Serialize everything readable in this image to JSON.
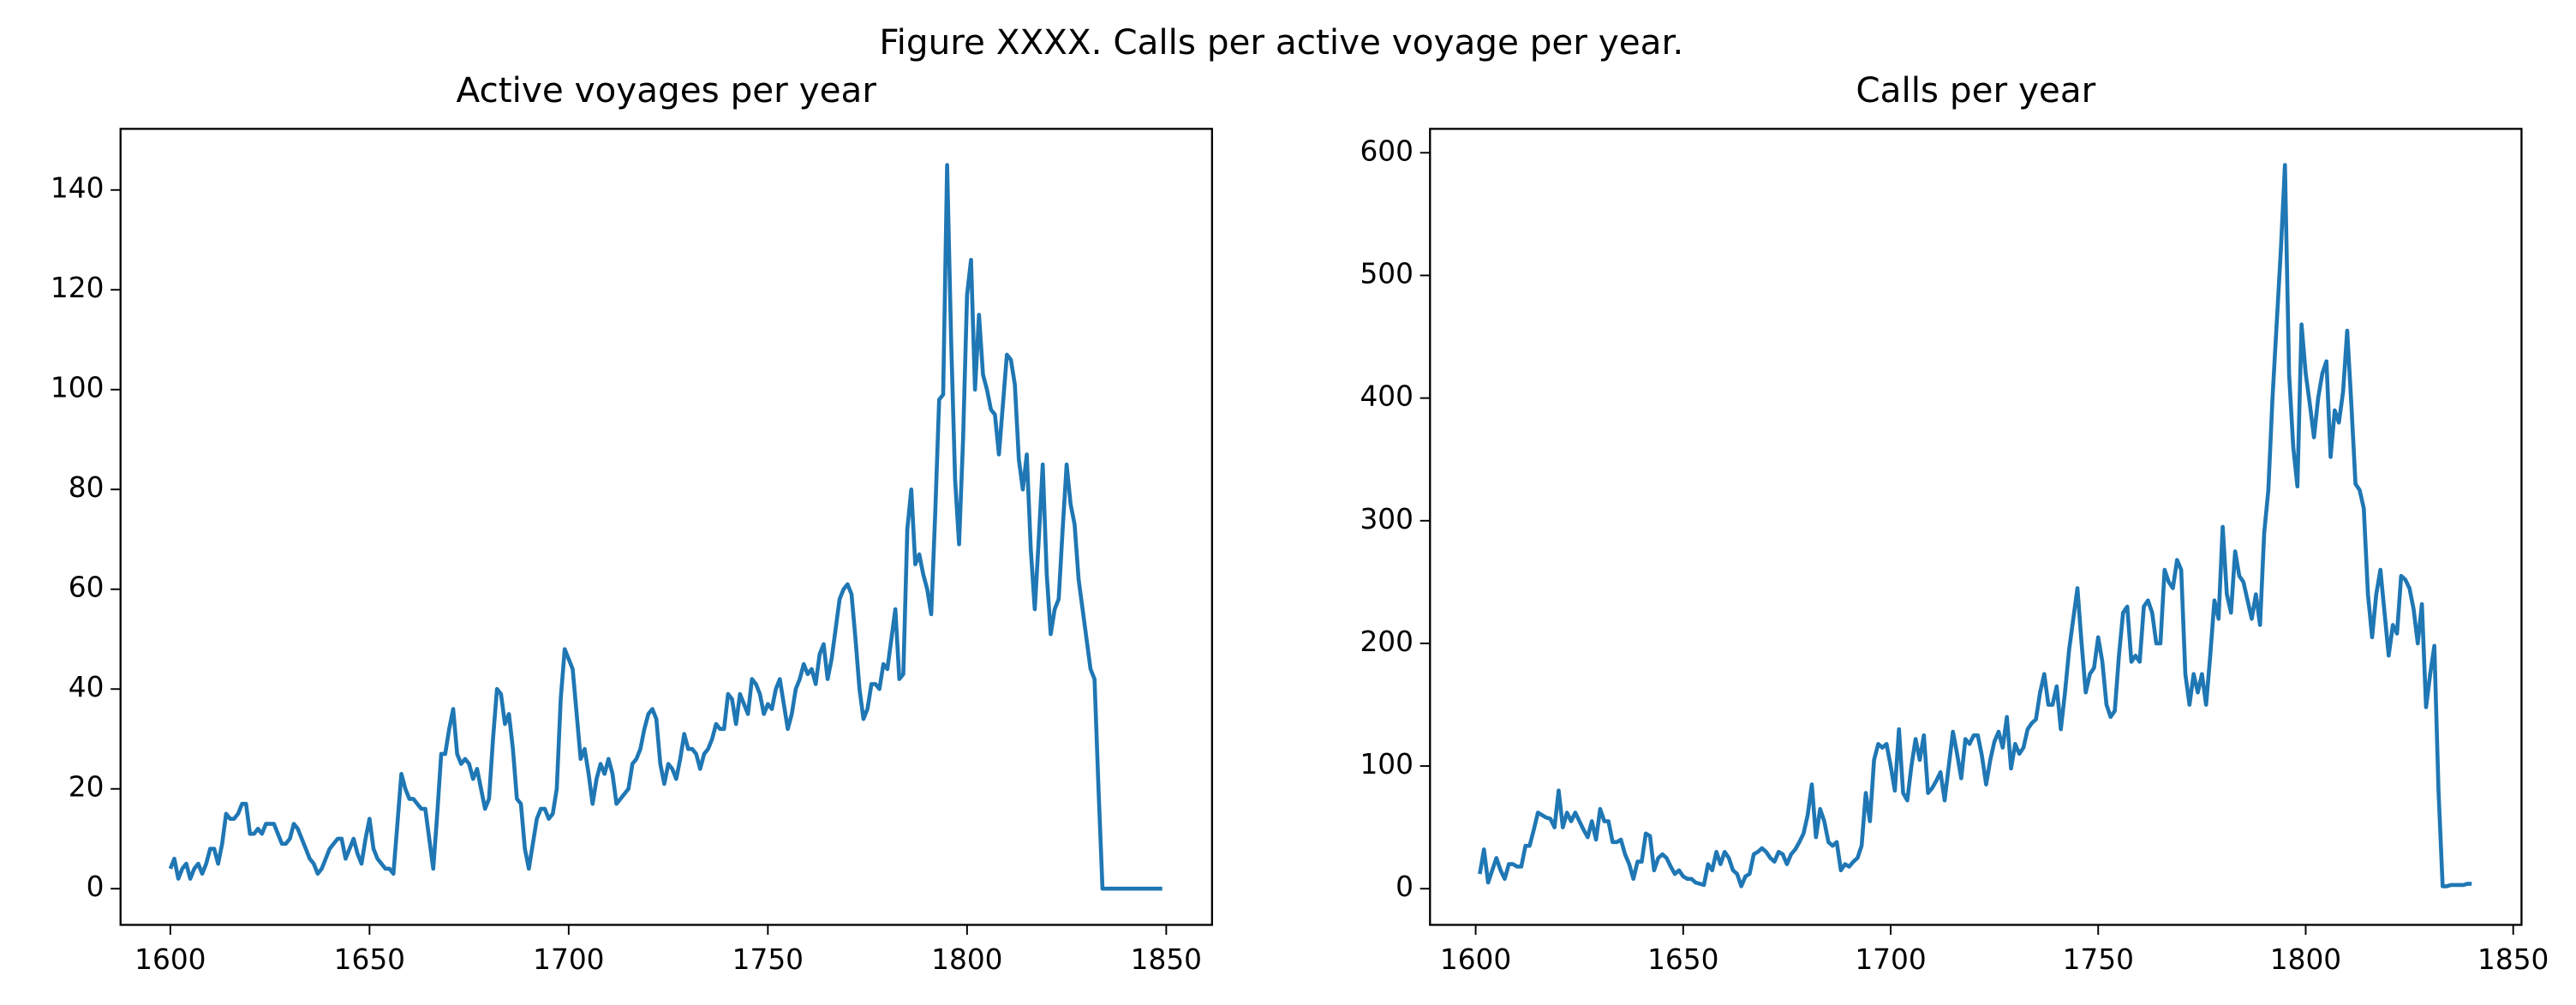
{
  "title": "Figure XXXX. Calls per active voyage per year.",
  "chart_data": [
    {
      "type": "line",
      "title": "Active voyages per year",
      "color": "#1f77b4",
      "x": [
        1600,
        1601,
        1602,
        1603,
        1604,
        1605,
        1606,
        1607,
        1608,
        1609,
        1610,
        1611,
        1612,
        1613,
        1614,
        1615,
        1616,
        1617,
        1618,
        1619,
        1620,
        1621,
        1622,
        1623,
        1624,
        1625,
        1626,
        1627,
        1628,
        1629,
        1630,
        1631,
        1632,
        1633,
        1634,
        1635,
        1636,
        1637,
        1638,
        1639,
        1640,
        1641,
        1642,
        1643,
        1644,
        1645,
        1646,
        1647,
        1648,
        1649,
        1650,
        1651,
        1652,
        1653,
        1654,
        1655,
        1656,
        1657,
        1658,
        1659,
        1660,
        1661,
        1662,
        1663,
        1664,
        1665,
        1666,
        1667,
        1668,
        1669,
        1670,
        1671,
        1672,
        1673,
        1674,
        1675,
        1676,
        1677,
        1678,
        1679,
        1680,
        1681,
        1682,
        1683,
        1684,
        1685,
        1686,
        1687,
        1688,
        1689,
        1690,
        1691,
        1692,
        1693,
        1694,
        1695,
        1696,
        1697,
        1698,
        1699,
        1700,
        1701,
        1702,
        1703,
        1704,
        1705,
        1706,
        1707,
        1708,
        1709,
        1710,
        1711,
        1712,
        1713,
        1714,
        1715,
        1716,
        1717,
        1718,
        1719,
        1720,
        1721,
        1722,
        1723,
        1724,
        1725,
        1726,
        1727,
        1728,
        1729,
        1730,
        1731,
        1732,
        1733,
        1734,
        1735,
        1736,
        1737,
        1738,
        1739,
        1740,
        1741,
        1742,
        1743,
        1744,
        1745,
        1746,
        1747,
        1748,
        1749,
        1750,
        1751,
        1752,
        1753,
        1754,
        1755,
        1756,
        1757,
        1758,
        1759,
        1760,
        1761,
        1762,
        1763,
        1764,
        1765,
        1766,
        1767,
        1768,
        1769,
        1770,
        1771,
        1772,
        1773,
        1774,
        1775,
        1776,
        1777,
        1778,
        1779,
        1780,
        1781,
        1782,
        1783,
        1784,
        1785,
        1786,
        1787,
        1788,
        1789,
        1790,
        1791,
        1792,
        1793,
        1794,
        1795,
        1796,
        1797,
        1798,
        1799,
        1800,
        1801,
        1802,
        1803,
        1804,
        1805,
        1806,
        1807,
        1808,
        1809,
        1810,
        1811,
        1812,
        1813,
        1814,
        1815,
        1816,
        1817,
        1818,
        1819,
        1820,
        1821,
        1822,
        1823,
        1824,
        1825,
        1826,
        1827,
        1828,
        1829,
        1830,
        1831,
        1832,
        1833,
        1834,
        1835,
        1836,
        1837,
        1838,
        1839,
        1840,
        1841,
        1842,
        1843,
        1844,
        1845,
        1846,
        1847,
        1848,
        1849
      ],
      "values": [
        4,
        6,
        2,
        4,
        5,
        2,
        4,
        5,
        3,
        5,
        8,
        8,
        5,
        9,
        15,
        14,
        14,
        15,
        17,
        17,
        11,
        11,
        12,
        11,
        13,
        13,
        13,
        11,
        9,
        9,
        10,
        13,
        12,
        10,
        8,
        6,
        5,
        3,
        4,
        6,
        8,
        9,
        10,
        10,
        6,
        8,
        10,
        7,
        5,
        10,
        14,
        8,
        6,
        5,
        4,
        4,
        3,
        13,
        23,
        20,
        18,
        18,
        17,
        16,
        16,
        10,
        4,
        15,
        27,
        27,
        32,
        36,
        27,
        25,
        26,
        25,
        22,
        24,
        20,
        16,
        18,
        30,
        40,
        39,
        33,
        35,
        28,
        18,
        17,
        8,
        4,
        9,
        14,
        16,
        16,
        14,
        15,
        20,
        38,
        48,
        46,
        44,
        35,
        26,
        28,
        23,
        17,
        22,
        25,
        23,
        26,
        23,
        17,
        18,
        19,
        20,
        25,
        26,
        28,
        32,
        35,
        36,
        34,
        25,
        21,
        25,
        24,
        22,
        26,
        31,
        28,
        28,
        27,
        24,
        27,
        28,
        30,
        33,
        32,
        32,
        39,
        38,
        33,
        39,
        37,
        35,
        42,
        41,
        39,
        35,
        37,
        36,
        40,
        42,
        37,
        32,
        35,
        40,
        42,
        45,
        43,
        44,
        41,
        47,
        49,
        42,
        46,
        52,
        58,
        60,
        61,
        59,
        50,
        40,
        34,
        36,
        41,
        41,
        40,
        45,
        44,
        50,
        56,
        42,
        43,
        72,
        80,
        65,
        67,
        63,
        60,
        55,
        75,
        98,
        99,
        145,
        110,
        82,
        69,
        90,
        119,
        126,
        100,
        115,
        103,
        100,
        96,
        95,
        87,
        97,
        107,
        106,
        101,
        86,
        80,
        87,
        68,
        56,
        70,
        85,
        63,
        51,
        56,
        58,
        72,
        85,
        77,
        73,
        62,
        56,
        50,
        44,
        42,
        20,
        0,
        0,
        0,
        0,
        0,
        0,
        0,
        0,
        0,
        0,
        0,
        0,
        0,
        0,
        0,
        0
      ],
      "xlim": [
        1587.5,
        1861.5
      ],
      "ylim": [
        -7.25,
        152.25
      ],
      "xticks": [
        1600,
        1650,
        1700,
        1750,
        1800,
        1850
      ],
      "yticks": [
        0,
        20,
        40,
        60,
        80,
        100,
        120,
        140
      ]
    },
    {
      "type": "line",
      "title": "Calls per year",
      "color": "#1f77b4",
      "x": [
        1601,
        1602,
        1603,
        1604,
        1605,
        1606,
        1607,
        1608,
        1609,
        1610,
        1611,
        1612,
        1613,
        1614,
        1615,
        1616,
        1617,
        1618,
        1619,
        1620,
        1621,
        1622,
        1623,
        1624,
        1625,
        1626,
        1627,
        1628,
        1629,
        1630,
        1631,
        1632,
        1633,
        1634,
        1635,
        1636,
        1637,
        1638,
        1639,
        1640,
        1641,
        1642,
        1643,
        1644,
        1645,
        1646,
        1647,
        1648,
        1649,
        1650,
        1651,
        1652,
        1653,
        1654,
        1655,
        1656,
        1657,
        1658,
        1659,
        1660,
        1661,
        1662,
        1663,
        1664,
        1665,
        1666,
        1667,
        1668,
        1669,
        1670,
        1671,
        1672,
        1673,
        1674,
        1675,
        1676,
        1677,
        1678,
        1679,
        1680,
        1681,
        1682,
        1683,
        1684,
        1685,
        1686,
        1687,
        1688,
        1689,
        1690,
        1691,
        1692,
        1693,
        1694,
        1695,
        1696,
        1697,
        1698,
        1699,
        1700,
        1701,
        1702,
        1703,
        1704,
        1705,
        1706,
        1707,
        1708,
        1709,
        1710,
        1711,
        1712,
        1713,
        1714,
        1715,
        1716,
        1717,
        1718,
        1719,
        1720,
        1721,
        1722,
        1723,
        1724,
        1725,
        1726,
        1727,
        1728,
        1729,
        1730,
        1731,
        1732,
        1733,
        1734,
        1735,
        1736,
        1737,
        1738,
        1739,
        1740,
        1741,
        1742,
        1743,
        1744,
        1745,
        1746,
        1747,
        1748,
        1749,
        1750,
        1751,
        1752,
        1753,
        1754,
        1755,
        1756,
        1757,
        1758,
        1759,
        1760,
        1761,
        1762,
        1763,
        1764,
        1765,
        1766,
        1767,
        1768,
        1769,
        1770,
        1771,
        1772,
        1773,
        1774,
        1775,
        1776,
        1777,
        1778,
        1779,
        1780,
        1781,
        1782,
        1783,
        1784,
        1785,
        1786,
        1787,
        1788,
        1789,
        1790,
        1791,
        1792,
        1793,
        1794,
        1795,
        1796,
        1797,
        1798,
        1799,
        1800,
        1801,
        1802,
        1803,
        1804,
        1805,
        1806,
        1807,
        1808,
        1809,
        1810,
        1811,
        1812,
        1813,
        1814,
        1815,
        1816,
        1817,
        1818,
        1819,
        1820,
        1821,
        1822,
        1823,
        1824,
        1825,
        1826,
        1827,
        1828,
        1829,
        1830,
        1831,
        1832,
        1833,
        1834,
        1835,
        1836,
        1837,
        1838,
        1839,
        1840
      ],
      "values": [
        12,
        32,
        5,
        15,
        25,
        15,
        8,
        20,
        20,
        18,
        18,
        35,
        35,
        48,
        62,
        60,
        58,
        57,
        50,
        80,
        50,
        62,
        55,
        62,
        55,
        48,
        42,
        55,
        40,
        65,
        55,
        55,
        38,
        38,
        40,
        28,
        20,
        8,
        22,
        22,
        45,
        43,
        15,
        25,
        28,
        25,
        18,
        12,
        15,
        10,
        8,
        8,
        5,
        4,
        3,
        20,
        15,
        30,
        20,
        30,
        25,
        15,
        12,
        2,
        10,
        12,
        28,
        30,
        33,
        30,
        25,
        22,
        30,
        28,
        20,
        28,
        32,
        38,
        45,
        60,
        85,
        42,
        65,
        55,
        38,
        35,
        38,
        15,
        20,
        18,
        22,
        25,
        35,
        78,
        55,
        105,
        118,
        115,
        118,
        100,
        80,
        130,
        78,
        72,
        100,
        122,
        105,
        125,
        78,
        82,
        88,
        95,
        72,
        100,
        128,
        110,
        90,
        122,
        118,
        125,
        125,
        108,
        85,
        105,
        120,
        128,
        115,
        140,
        98,
        118,
        110,
        115,
        130,
        135,
        138,
        160,
        175,
        150,
        150,
        165,
        130,
        160,
        195,
        220,
        245,
        200,
        160,
        175,
        180,
        205,
        185,
        150,
        140,
        145,
        190,
        225,
        230,
        185,
        190,
        185,
        230,
        235,
        225,
        200,
        200,
        260,
        250,
        245,
        268,
        260,
        175,
        150,
        175,
        160,
        175,
        150,
        190,
        235,
        220,
        295,
        240,
        225,
        275,
        255,
        250,
        235,
        220,
        240,
        215,
        290,
        325,
        400,
        460,
        520,
        590,
        420,
        360,
        328,
        460,
        420,
        395,
        368,
        400,
        420,
        430,
        352,
        390,
        380,
        405,
        455,
        395,
        330,
        325,
        310,
        240,
        205,
        240,
        260,
        225,
        190,
        215,
        208,
        255,
        252,
        245,
        228,
        200,
        232,
        148,
        175,
        198,
        80,
        2,
        2,
        3,
        3,
        3,
        3,
        4,
        4
      ],
      "xlim": [
        1589,
        1852
      ],
      "ylim": [
        -29.5,
        619.5
      ],
      "xticks": [
        1600,
        1650,
        1700,
        1750,
        1800,
        1850
      ],
      "yticks": [
        0,
        100,
        200,
        300,
        400,
        500,
        600
      ]
    }
  ]
}
